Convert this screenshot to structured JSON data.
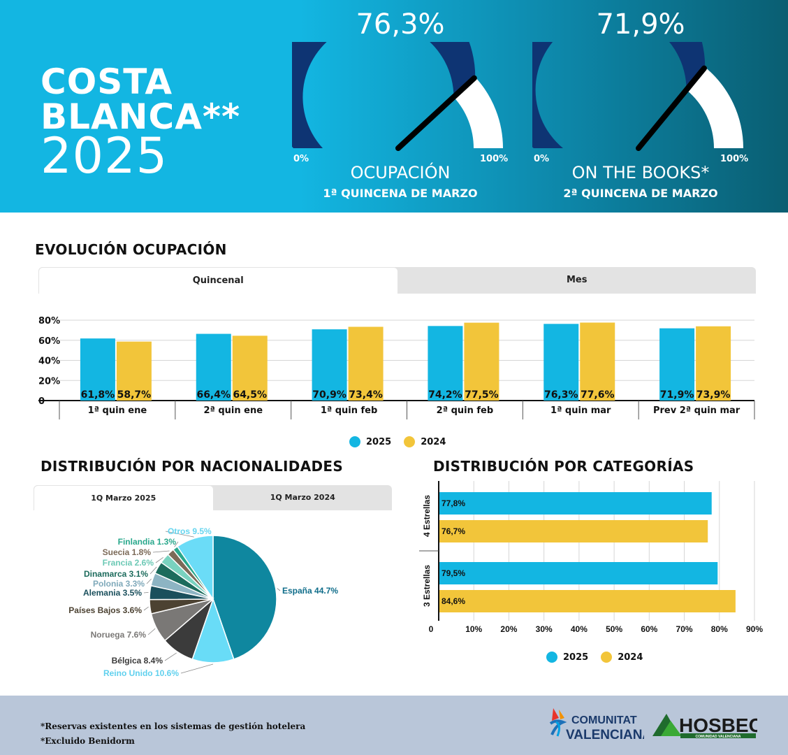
{
  "header": {
    "brand_line1": "COSTA",
    "brand_line2": "BLANCA**",
    "brand_year": "2025",
    "gauges": [
      {
        "value_label": "76,3%",
        "value": 0.763,
        "min_label": "0%",
        "max_label": "100%",
        "title": "OCUPACIÓN",
        "subtitle": "1ª QUINCENA DE MARZO"
      },
      {
        "value_label": "71,9%",
        "value": 0.719,
        "min_label": "0%",
        "max_label": "100%",
        "title": "ON THE BOOKS*",
        "subtitle": "2ª QUINCENA DE MARZO"
      }
    ],
    "gauge_fill_color": "#0e3473",
    "gauge_empty_color": "#ffffff"
  },
  "evolucion": {
    "title": "EVOLUCIÓN OCUPACIÓN",
    "tabs": [
      {
        "label": "Quincenal",
        "active": true
      },
      {
        "label": "Mes",
        "active": false
      }
    ],
    "legend": [
      {
        "label": "2025",
        "color": "#13b6e2"
      },
      {
        "label": "2024",
        "color": "#f2c53a"
      }
    ]
  },
  "nacionalidades": {
    "title": "DISTRIBUCIÓN POR NACIONALIDADES",
    "tabs": [
      {
        "label": "1Q Marzo 2025",
        "active": true
      },
      {
        "label": "1Q Marzo 2024",
        "active": false
      }
    ]
  },
  "categorias": {
    "title": "DISTRIBUCIÓN POR CATEGORÍAS",
    "legend": [
      {
        "label": "2025",
        "color": "#13b6e2"
      },
      {
        "label": "2024",
        "color": "#f2c53a"
      }
    ]
  },
  "footer": {
    "note1": "*Reservas existentes en los sistemas de gestión hotelera",
    "note2": "*Excluido Benidorm",
    "logo_cv_line1": "COMUNITAT",
    "logo_cv_line2": "VALENCIANA",
    "logo_hosbec": "HOSBEC",
    "logo_hosbec_sub": "COMUNIDAD VALENCIANA"
  },
  "chart_data": [
    {
      "type": "bar",
      "categories": [
        "1ª quin ene",
        "2ª quin ene",
        "1ª quin feb",
        "2ª quin feb",
        "1ª quin mar",
        "Prev 2ª quin mar"
      ],
      "series": [
        {
          "name": "2025",
          "color": "#13b6e2",
          "values": [
            61.8,
            66.4,
            70.9,
            74.2,
            76.3,
            71.9
          ],
          "labels": [
            "61,8%",
            "66,4%",
            "70,9%",
            "74,2%",
            "76,3%",
            "71,9%"
          ]
        },
        {
          "name": "2024",
          "color": "#f2c53a",
          "values": [
            58.7,
            64.5,
            73.4,
            77.5,
            77.6,
            73.9
          ],
          "labels": [
            "58,7%",
            "64,5%",
            "73,4%",
            "77,5%",
            "77,6%",
            "73,9%"
          ]
        }
      ],
      "ylim": [
        0,
        80
      ],
      "yticks": [
        "0",
        "20%",
        "40%",
        "60%",
        "80%"
      ],
      "ytick_values": [
        0,
        20,
        40,
        60,
        80
      ],
      "grid": true
    },
    {
      "type": "pie",
      "slices": [
        {
          "label": "España 44.7%",
          "value": 44.7,
          "color": "#0f879f",
          "label_color": "#0f6d8a"
        },
        {
          "label": "Reino Unido 10.6%",
          "value": 10.6,
          "color": "#69dcf7",
          "label_color": "#5fd0ee"
        },
        {
          "label": "Bélgica 8.4%",
          "value": 8.4,
          "color": "#3b3b3b",
          "label_color": "#3b3b3b"
        },
        {
          "label": "Noruega 7.6%",
          "value": 7.6,
          "color": "#7a7876",
          "label_color": "#7a7876"
        },
        {
          "label": "Países Bajos 3.6%",
          "value": 3.6,
          "color": "#4c4232",
          "label_color": "#4c4232"
        },
        {
          "label": "Alemania 3.5%",
          "value": 3.5,
          "color": "#1a4f5c",
          "label_color": "#1a4f5c"
        },
        {
          "label": "Polonia 3.3%",
          "value": 3.3,
          "color": "#8db4c3",
          "label_color": "#7fa9ba"
        },
        {
          "label": "Dinamarca 3.1%",
          "value": 3.1,
          "color": "#1c6b5c",
          "label_color": "#1c6b5c"
        },
        {
          "label": "Francia 2.6%",
          "value": 2.6,
          "color": "#79d2bf",
          "label_color": "#6cc9b5"
        },
        {
          "label": "Suecia 1.8%",
          "value": 1.8,
          "color": "#7c6a58",
          "label_color": "#7c6a58"
        },
        {
          "label": "Finlandia 1.3%",
          "value": 1.3,
          "color": "#29a88c",
          "label_color": "#29a88c"
        },
        {
          "label": "Otros 9.5%",
          "value": 9.5,
          "color": "#6bdcf7",
          "label_color": "#66d5ef"
        }
      ]
    },
    {
      "type": "bar",
      "orientation": "horizontal",
      "categories": [
        "4 Estrellas",
        "3 Estrellas"
      ],
      "series": [
        {
          "name": "2025",
          "color": "#13b6e2",
          "values": [
            77.8,
            79.5
          ],
          "labels": [
            "77,8%",
            "79,5%"
          ]
        },
        {
          "name": "2024",
          "color": "#f2c53a",
          "values": [
            76.7,
            84.6
          ],
          "labels": [
            "76,7%",
            "84,6%"
          ]
        }
      ],
      "xlim": [
        0,
        90
      ],
      "xticks": [
        "0",
        "10%",
        "20%",
        "30%",
        "40%",
        "50%",
        "60%",
        "70%",
        "80%",
        "90%"
      ],
      "xtick_values": [
        0,
        10,
        20,
        30,
        40,
        50,
        60,
        70,
        80,
        90
      ],
      "grid": true
    }
  ]
}
